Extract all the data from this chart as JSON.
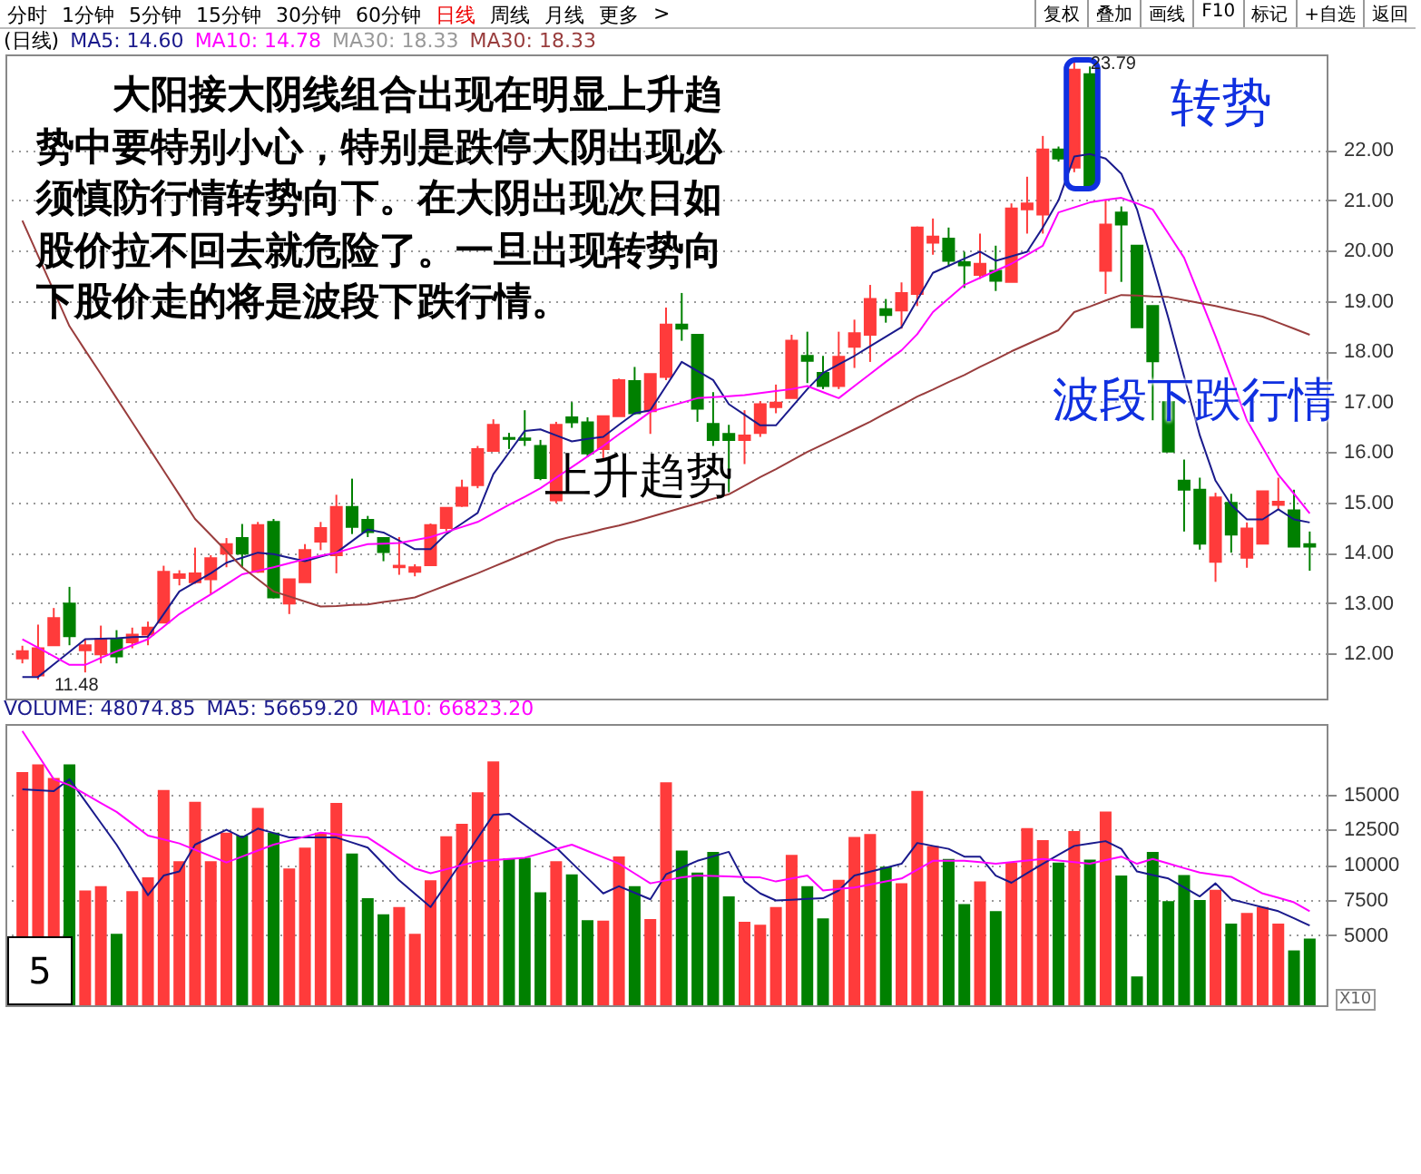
{
  "chart_data": [
    {
      "type": "candlestick",
      "categories": [
        null,
        null,
        null,
        null,
        null,
        null,
        null,
        null,
        null,
        null,
        null,
        null,
        null,
        null,
        null,
        null,
        null,
        null,
        null,
        null,
        null,
        null,
        null,
        null,
        null,
        null,
        null,
        null,
        null,
        null,
        null,
        null,
        null,
        null,
        null,
        null,
        null,
        null,
        null,
        null,
        null,
        null,
        null,
        null,
        null,
        null,
        null,
        null,
        null,
        null,
        null,
        null,
        null,
        null,
        null,
        null,
        null,
        null,
        null,
        null,
        null,
        null,
        null,
        null,
        null,
        null,
        null,
        null,
        null,
        null,
        null,
        null,
        null,
        null,
        null,
        null,
        null,
        null,
        null,
        null,
        null,
        null,
        null
      ],
      "ohlc": [
        [
          11.9,
          12.15,
          11.8,
          12.04
        ],
        [
          11.56,
          12.57,
          11.48,
          12.1
        ],
        [
          12.16,
          12.9,
          12.16,
          12.7
        ],
        [
          12.99,
          13.32,
          12.16,
          12.34
        ],
        [
          12.06,
          12.28,
          11.62,
          12.16
        ],
        [
          11.98,
          12.55,
          11.8,
          12.28
        ],
        [
          12.28,
          12.46,
          11.8,
          11.94
        ],
        [
          12.22,
          12.51,
          12.1,
          12.37
        ],
        [
          12.37,
          12.63,
          12.16,
          12.51
        ],
        [
          12.61,
          13.74,
          12.61,
          13.62
        ],
        [
          13.5,
          13.65,
          13.35,
          13.57
        ],
        [
          13.41,
          14.1,
          13.38,
          13.59
        ],
        [
          13.47,
          13.95,
          13.17,
          13.89
        ],
        [
          13.98,
          14.29,
          13.71,
          14.17
        ],
        [
          14.29,
          14.57,
          13.71,
          13.98
        ],
        [
          13.62,
          14.61,
          13.6,
          14.55
        ],
        [
          14.61,
          14.67,
          13.09,
          13.11
        ],
        [
          12.99,
          13.47,
          12.78,
          13.47
        ],
        [
          13.41,
          14.17,
          13.41,
          14.05
        ],
        [
          14.22,
          14.61,
          14.05,
          14.49
        ],
        [
          13.95,
          15.15,
          13.59,
          14.91
        ],
        [
          14.91,
          15.47,
          14.37,
          14.51
        ],
        [
          14.65,
          14.73,
          14.31,
          14.41
        ],
        [
          14.29,
          14.31,
          13.83,
          14.01
        ],
        [
          13.71,
          14.31,
          13.56,
          13.74
        ],
        [
          13.62,
          13.77,
          13.53,
          13.71
        ],
        [
          13.75,
          14.58,
          13.75,
          14.55
        ],
        [
          14.49,
          14.89,
          14.43,
          14.89
        ],
        [
          14.93,
          15.45,
          14.91,
          15.29
        ],
        [
          15.34,
          16.12,
          15.28,
          16.06
        ],
        [
          16.02,
          16.65,
          16.02,
          16.54
        ],
        [
          16.28,
          16.38,
          16.06,
          16.26
        ],
        [
          16.27,
          16.83,
          16.12,
          16.24
        ],
        [
          16.12,
          16.24,
          15.44,
          15.48
        ],
        [
          15.04,
          16.6,
          14.98,
          16.54
        ],
        [
          16.69,
          16.99,
          16.48,
          16.59
        ],
        [
          16.59,
          16.69,
          15.9,
          15.97
        ],
        [
          16.06,
          16.71,
          15.88,
          16.71
        ],
        [
          16.71,
          17.46,
          16.71,
          17.43
        ],
        [
          17.41,
          17.69,
          16.74,
          16.77
        ],
        [
          16.81,
          17.55,
          16.36,
          17.55
        ],
        [
          17.49,
          18.87,
          17.43,
          18.53
        ],
        [
          18.53,
          19.16,
          18.21,
          18.45
        ],
        [
          18.33,
          18.33,
          16.6,
          16.86
        ],
        [
          16.56,
          17.19,
          16.12,
          16.24
        ],
        [
          16.36,
          16.54,
          15.2,
          16.24
        ],
        [
          16.24,
          16.83,
          15.76,
          16.33
        ],
        [
          16.38,
          17.01,
          16.3,
          16.95
        ],
        [
          16.89,
          17.34,
          16.77,
          16.98
        ],
        [
          17.07,
          18.33,
          17.07,
          18.21
        ],
        [
          17.91,
          18.39,
          17.37,
          17.81
        ],
        [
          17.57,
          17.91,
          17.25,
          17.31
        ],
        [
          17.31,
          18.39,
          17.25,
          17.89
        ],
        [
          18.09,
          18.63,
          17.67,
          18.36
        ],
        [
          18.33,
          19.32,
          17.79,
          19.04
        ],
        [
          18.84,
          19.04,
          18.57,
          18.72
        ],
        [
          18.81,
          19.37,
          18.45,
          19.16
        ],
        [
          19.14,
          20.48,
          18.9,
          20.46
        ],
        [
          20.16,
          20.64,
          19.92,
          20.28
        ],
        [
          20.24,
          20.46,
          19.68,
          19.8
        ],
        [
          19.77,
          19.98,
          19.26,
          19.71
        ],
        [
          19.52,
          20.34,
          19.44,
          19.74
        ],
        [
          19.6,
          20.1,
          19.2,
          19.4
        ],
        [
          19.38,
          20.94,
          19.38,
          20.84
        ],
        [
          20.82,
          21.47,
          20.34,
          20.94
        ],
        [
          20.72,
          22.28,
          20.34,
          22.01
        ],
        [
          22.01,
          22.07,
          21.77,
          21.83
        ],
        [
          21.65,
          23.79,
          21.56,
          23.6
        ],
        [
          23.51,
          23.66,
          21.23,
          21.27
        ],
        [
          19.6,
          21.0,
          19.14,
          20.52
        ],
        [
          20.76,
          20.88,
          19.38,
          20.52
        ],
        [
          20.1,
          20.1,
          18.48,
          18.48
        ],
        [
          18.9,
          18.9,
          16.63,
          17.8
        ],
        [
          16.99,
          16.99,
          16.01,
          16.01
        ],
        [
          15.43,
          15.85,
          14.42,
          15.25
        ],
        [
          15.25,
          15.49,
          14.06,
          14.18
        ],
        [
          13.82,
          15.19,
          13.42,
          15.1
        ],
        [
          14.99,
          15.17,
          14.0,
          14.36
        ],
        [
          13.9,
          14.6,
          13.7,
          14.48
        ],
        [
          14.18,
          15.22,
          14.18,
          15.22
        ],
        [
          14.95,
          15.49,
          14.86,
          15.01
        ],
        [
          14.84,
          15.25,
          14.12,
          14.12
        ],
        [
          14.17,
          14.42,
          13.64,
          14.12
        ]
      ],
      "colors": [
        "#ff3b3b",
        "#ff3b3b",
        "#ff3b3b",
        "#008000",
        "#ff3b3b",
        "#ff3b3b",
        "#008000",
        "#ff3b3b",
        "#ff3b3b",
        "#ff3b3b",
        "#ff3b3b",
        "#ff3b3b",
        "#ff3b3b",
        "#ff3b3b",
        "#008000",
        "#ff3b3b",
        "#008000",
        "#ff3b3b",
        "#ff3b3b",
        "#ff3b3b",
        "#ff3b3b",
        "#008000",
        "#008000",
        "#008000",
        "#ff3b3b",
        "#ff3b3b",
        "#ff3b3b",
        "#ff3b3b",
        "#ff3b3b",
        "#ff3b3b",
        "#ff3b3b",
        "#008000",
        "#008000",
        "#008000",
        "#ff3b3b",
        "#008000",
        "#008000",
        "#ff3b3b",
        "#ff3b3b",
        "#008000",
        "#ff3b3b",
        "#ff3b3b",
        "#008000",
        "#008000",
        "#008000",
        "#008000",
        "#ff3b3b",
        "#ff3b3b",
        "#ff3b3b",
        "#ff3b3b",
        "#008000",
        "#008000",
        "#ff3b3b",
        "#ff3b3b",
        "#ff3b3b",
        "#008000",
        "#ff3b3b",
        "#ff3b3b",
        "#ff3b3b",
        "#008000",
        "#008000",
        "#ff3b3b",
        "#008000",
        "#ff3b3b",
        "#ff3b3b",
        "#ff3b3b",
        "#008000",
        "#ff3b3b",
        "#008000",
        "#ff3b3b",
        "#008000",
        "#008000",
        "#008000",
        "#008000",
        "#008000",
        "#008000",
        "#ff3b3b",
        "#008000",
        "#ff3b3b",
        "#ff3b3b",
        "#ff3b3b",
        "#008000",
        "#008000"
      ],
      "series": [
        {
          "name": "MA5: 14.60",
          "type": "line",
          "color": "#1a1a8c",
          "values": [
            11.53,
            11.53,
            11.78,
            12.03,
            12.28,
            12.29,
            12.3,
            12.32,
            12.33,
            12.78,
            13.23,
            13.41,
            13.59,
            13.8,
            13.9,
            14.0,
            13.97,
            13.9,
            13.83,
            13.92,
            14.0,
            14.23,
            14.46,
            14.4,
            14.24,
            14.07,
            14.07,
            14.37,
            14.58,
            14.79,
            15.56,
            15.99,
            16.42,
            16.45,
            16.33,
            16.21,
            16.26,
            16.3,
            16.54,
            16.77,
            16.83,
            17.31,
            17.79,
            17.61,
            17.43,
            16.95,
            16.74,
            16.53,
            16.53,
            16.89,
            17.25,
            17.57,
            17.74,
            17.91,
            18.1,
            18.29,
            18.48,
            19.02,
            19.56,
            19.7,
            19.84,
            19.98,
            19.8,
            19.89,
            19.98,
            20.46,
            21.0,
            21.87,
            21.92,
            21.83,
            21.53,
            20.82,
            19.74,
            18.66,
            17.5,
            16.33,
            15.43,
            14.95,
            14.66,
            14.66,
            14.86,
            14.66,
            14.6
          ]
        },
        {
          "name": "MA10: 14.78",
          "type": "line",
          "color": "#ff00ff",
          "values": [
            12.28,
            12.11,
            11.94,
            11.77,
            11.77,
            11.91,
            12.04,
            12.16,
            12.28,
            12.53,
            12.78,
            12.98,
            13.17,
            13.37,
            13.57,
            13.64,
            13.71,
            13.79,
            13.87,
            13.94,
            14.0,
            14.09,
            14.17,
            14.18,
            14.19,
            14.25,
            14.31,
            14.41,
            14.51,
            14.61,
            14.78,
            14.95,
            15.11,
            15.28,
            15.49,
            15.7,
            15.91,
            16.12,
            16.35,
            16.57,
            16.8,
            16.89,
            16.98,
            17.07,
            17.09,
            17.11,
            17.13,
            17.17,
            17.21,
            17.25,
            17.31,
            17.19,
            17.07,
            17.31,
            17.55,
            17.79,
            18.02,
            18.34,
            18.78,
            19.05,
            19.32,
            19.46,
            19.6,
            19.74,
            19.92,
            20.1,
            20.76,
            20.86,
            20.96,
            21.01,
            21.05,
            20.94,
            20.82,
            20.34,
            19.86,
            19.08,
            18.3,
            17.47,
            16.63,
            16.09,
            15.55,
            15.17,
            14.78
          ]
        },
        {
          "name": "MA30: 18.33",
          "type": "line",
          "color": "#993d3d",
          "values": [
            20.6,
            19.9,
            19.2,
            18.5,
            18.02,
            17.55,
            17.07,
            16.59,
            16.11,
            15.63,
            15.15,
            14.67,
            14.35,
            14.03,
            13.71,
            13.47,
            13.23,
            13.13,
            13.03,
            12.93,
            12.94,
            12.96,
            12.97,
            13.02,
            13.06,
            13.11,
            13.23,
            13.35,
            13.47,
            13.59,
            13.72,
            13.85,
            13.98,
            14.11,
            14.24,
            14.32,
            14.39,
            14.47,
            14.54,
            14.62,
            14.71,
            14.8,
            14.89,
            14.98,
            15.07,
            15.16,
            15.33,
            15.5,
            15.66,
            15.83,
            16.0,
            16.15,
            16.3,
            16.45,
            16.6,
            16.77,
            16.93,
            17.1,
            17.24,
            17.39,
            17.53,
            17.69,
            17.84,
            18.0,
            18.14,
            18.28,
            18.42,
            18.78,
            18.89,
            19.01,
            19.12,
            19.11,
            19.09,
            19.08,
            19.02,
            18.96,
            18.9,
            18.83,
            18.76,
            18.69,
            18.57,
            18.45,
            18.33
          ]
        }
      ],
      "ylim": [
        11.1,
        23.9
      ],
      "yticks": [
        {
          "value": 12,
          "label": "12.00"
        },
        {
          "value": 13,
          "label": "13.00"
        },
        {
          "value": 14,
          "label": "14.00"
        },
        {
          "value": 15,
          "label": "15.00"
        },
        {
          "value": 16,
          "label": "16.00"
        },
        {
          "value": 17,
          "label": "17.00"
        },
        {
          "value": 18,
          "label": "18.00"
        },
        {
          "value": 19,
          "label": "19.00"
        },
        {
          "value": 20,
          "label": "20.00"
        },
        {
          "value": 21,
          "label": "21.00"
        },
        {
          "value": 22,
          "label": "22.00"
        }
      ],
      "tick_labels": "y",
      "grid": "y",
      "annotations": [
        "(日线)",
        "MA30: 18.33",
        "大阳接大阴线组合出现在明显上升趋势中要特别小心，特别是跌停大阴出现必须慎防行情转势向下。在大阴出现次日如股价拉不回去就危险了。一旦出现转势向下股价走的将是波段下跌行情。",
        "转势",
        "波段下跌行情",
        "上升趋势",
        "23.79",
        "11.48",
        "分时 1分钟 5分钟 15分钟 30分钟 60分钟 日线 周线 月线 更多 >",
        "复权 叠加 画线 F10 标记 +自选 返回"
      ]
    },
    {
      "type": "bar",
      "categories": [
        null,
        null,
        null,
        null,
        null,
        null,
        null,
        null,
        null,
        null,
        null,
        null,
        null,
        null,
        null,
        null,
        null,
        null,
        null,
        null,
        null,
        null,
        null,
        null,
        null,
        null,
        null,
        null,
        null,
        null,
        null,
        null,
        null,
        null,
        null,
        null,
        null,
        null,
        null,
        null,
        null,
        null,
        null,
        null,
        null,
        null,
        null,
        null,
        null,
        null,
        null,
        null,
        null,
        null,
        null,
        null,
        null,
        null,
        null,
        null,
        null,
        null,
        null,
        null,
        null,
        null,
        null,
        null,
        null,
        null,
        null,
        null,
        null,
        null,
        null,
        null,
        null,
        null,
        null,
        null,
        null,
        null,
        null
      ],
      "values": [
        16580,
        17130,
        16160,
        17130,
        8160,
        8460,
        5080,
        8120,
        9090,
        15310,
        10240,
        14470,
        10240,
        12270,
        12060,
        14040,
        12270,
        9730,
        11210,
        12270,
        14380,
        10790,
        7610,
        6470,
        6980,
        5080,
        8880,
        12010,
        12900,
        15140,
        17340,
        10450,
        10490,
        8040,
        10240,
        9310,
        6050,
        6010,
        10580,
        8460,
        6130,
        15860,
        11000,
        9430,
        10910,
        7740,
        5930,
        5720,
        6980,
        10700,
        8460,
        6180,
        8920,
        11960,
        12170,
        9850,
        8670,
        15250,
        11330,
        10400,
        7190,
        8800,
        6690,
        10150,
        12590,
        11750,
        10150,
        12380,
        10360,
        13780,
        9220,
        2050,
        10910,
        7400,
        9260,
        7490,
        8210,
        5800,
        6560,
        6980,
        5800,
        3900,
        4740
      ],
      "colors": [
        "#ff3b3b",
        "#ff3b3b",
        "#ff3b3b",
        "#008000",
        "#ff3b3b",
        "#ff3b3b",
        "#008000",
        "#ff3b3b",
        "#ff3b3b",
        "#ff3b3b",
        "#ff3b3b",
        "#ff3b3b",
        "#ff3b3b",
        "#ff3b3b",
        "#008000",
        "#ff3b3b",
        "#008000",
        "#ff3b3b",
        "#ff3b3b",
        "#ff3b3b",
        "#ff3b3b",
        "#008000",
        "#008000",
        "#008000",
        "#ff3b3b",
        "#ff3b3b",
        "#ff3b3b",
        "#ff3b3b",
        "#ff3b3b",
        "#ff3b3b",
        "#ff3b3b",
        "#008000",
        "#008000",
        "#008000",
        "#ff3b3b",
        "#008000",
        "#008000",
        "#ff3b3b",
        "#ff3b3b",
        "#008000",
        "#ff3b3b",
        "#ff3b3b",
        "#008000",
        "#008000",
        "#008000",
        "#008000",
        "#ff3b3b",
        "#ff3b3b",
        "#ff3b3b",
        "#ff3b3b",
        "#008000",
        "#008000",
        "#ff3b3b",
        "#ff3b3b",
        "#ff3b3b",
        "#008000",
        "#ff3b3b",
        "#ff3b3b",
        "#ff3b3b",
        "#008000",
        "#008000",
        "#ff3b3b",
        "#008000",
        "#ff3b3b",
        "#ff3b3b",
        "#ff3b3b",
        "#008000",
        "#ff3b3b",
        "#008000",
        "#ff3b3b",
        "#008000",
        "#008000",
        "#008000",
        "#008000",
        "#008000",
        "#008000",
        "#ff3b3b",
        "#008000",
        "#ff3b3b",
        "#ff3b3b",
        "#ff3b3b",
        "#008000",
        "#008000"
      ],
      "series": [
        {
          "name": "MA5: 56659.20",
          "type": "line",
          "color": "#1a1a8c",
          "values": [
            15350,
            15290,
            15230,
            16070,
            14520,
            12970,
            11420,
            9630,
            7830,
            9220,
            9520,
            11420,
            11950,
            12480,
            11930,
            12560,
            12250,
            11930,
            11930,
            11930,
            11930,
            11570,
            11210,
            10050,
            8880,
            7930,
            6980,
            8610,
            10240,
            11890,
            13540,
            13620,
            12820,
            12010,
            11210,
            10120,
            9040,
            7950,
            8460,
            8000,
            7530,
            9310,
            9790,
            10270,
            10590,
            10910,
            8800,
            7950,
            7450,
            7500,
            7560,
            7610,
            8160,
            9220,
            9500,
            9780,
            10060,
            11540,
            11330,
            11120,
            10570,
            10570,
            9220,
            8710,
            9390,
            10060,
            10700,
            11330,
            11500,
            11670,
            11120,
            9510,
            9260,
            9010,
            8380,
            7740,
            8670,
            7530,
            7250,
            6970,
            6690,
            6180,
            5666
          ]
        },
        {
          "name": "MA10: 66823.20",
          "type": "line",
          "color": "#ff00ff",
          "values": [
            19500,
            17790,
            16070,
            15650,
            15020,
            14380,
            13750,
            12910,
            12060,
            11790,
            11510,
            11060,
            10600,
            10150,
            10570,
            11000,
            11420,
            11700,
            11990,
            12270,
            12160,
            12040,
            11930,
            11200,
            10460,
            9730,
            9390,
            9670,
            9960,
            10240,
            10320,
            10410,
            10490,
            10800,
            11110,
            11420,
            10970,
            10520,
            10070,
            9370,
            8670,
            8880,
            9090,
            9220,
            9190,
            9160,
            9120,
            9090,
            8800,
            9010,
            9220,
            8160,
            8270,
            8370,
            8580,
            8800,
            9010,
            9640,
            10270,
            10270,
            10270,
            10170,
            10060,
            10170,
            10290,
            10400,
            10290,
            10170,
            10060,
            10320,
            10570,
            10060,
            10400,
            10080,
            9750,
            9430,
            9280,
            9130,
            8540,
            7950,
            7640,
            7320,
            6682
          ]
        }
      ],
      "ylim": [
        0,
        20000
      ],
      "yticks": [
        5000,
        7500,
        10000,
        12500,
        15000
      ],
      "tick_labels": "y",
      "grid": "y",
      "annotations": [
        "VOLUME: 48074.85",
        "5",
        "X10"
      ]
    }
  ]
}
